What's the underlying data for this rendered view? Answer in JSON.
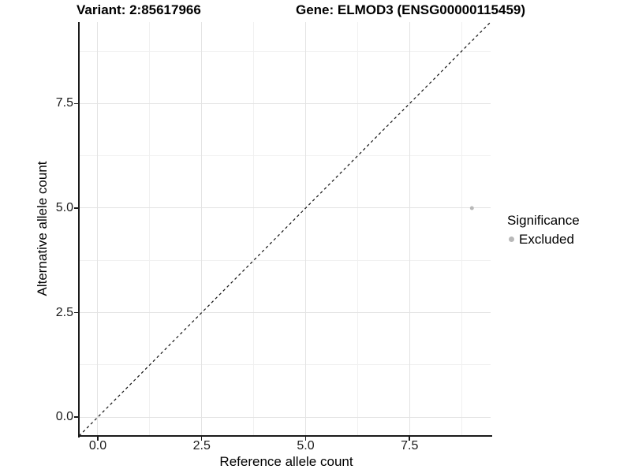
{
  "chart_data": {
    "type": "scatter",
    "titles": {
      "left": "Variant: 2:85617966",
      "right": "Gene: ELMOD3 (ENSG00000115459)"
    },
    "xlabel": "Reference allele count",
    "ylabel": "Alternative allele count",
    "xlim": [
      -0.455,
      9.45
    ],
    "ylim": [
      -0.45,
      9.45
    ],
    "major_ticks": [
      0,
      2.5,
      5,
      7.5
    ],
    "major_tick_labels": [
      "0.0",
      "2.5",
      "5.0",
      "7.5"
    ],
    "minor_ticks": [
      1.25,
      3.75,
      6.25,
      8.75
    ],
    "grid": "major and minor gridlines, white panel background, legend right",
    "identity_line": {
      "slope": 1,
      "intercept": 0,
      "style": "dashed",
      "color": "#111111"
    },
    "points": [
      {
        "x": 9,
        "y": 5,
        "significance": "Excluded",
        "color": "#b8b8b8",
        "radius_px": 2.5
      }
    ],
    "legend": {
      "title": "Significance",
      "position": "right",
      "entries": [
        {
          "label": "Excluded",
          "color": "#b8b8b8"
        }
      ]
    },
    "colors": {
      "grid_major": "#e3e3e3",
      "grid_minor": "#f0f0f0",
      "axis_line": "#1a1a1a",
      "text": "#000000"
    }
  }
}
